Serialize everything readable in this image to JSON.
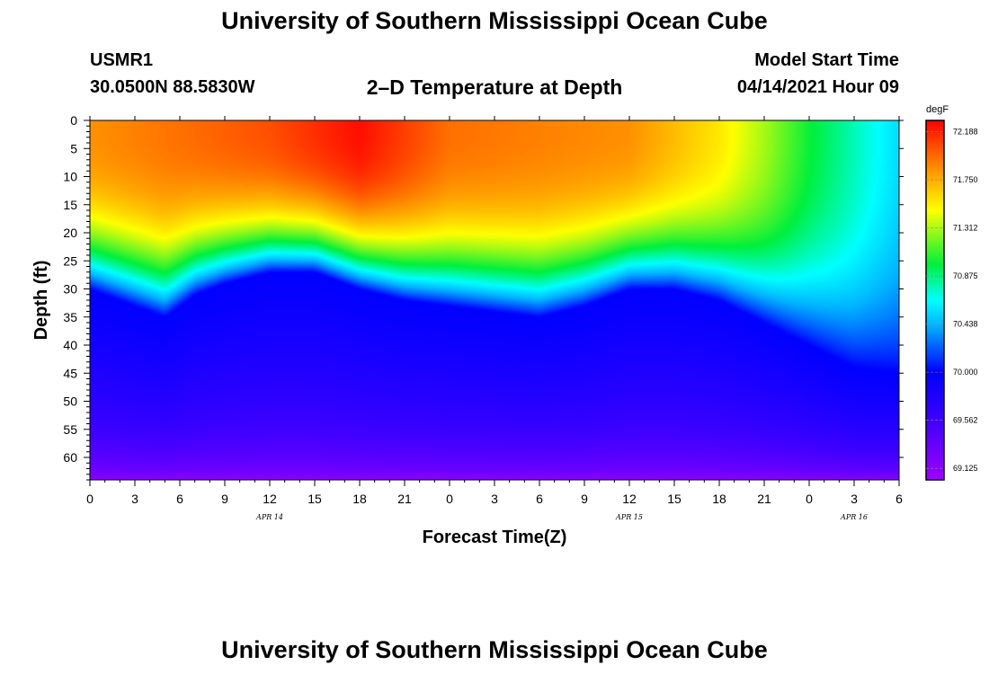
{
  "header": {
    "title": "University of Southern Mississippi Ocean Cube",
    "station": "USMR1",
    "coords": "30.0500N  88.5830W",
    "subtitle": "2–D Temperature at Depth",
    "start_label": "Model Start Time",
    "start_value": "04/14/2021 Hour 09"
  },
  "footer": {
    "title": "University of Southern Mississippi Ocean Cube"
  },
  "chart_data": {
    "type": "heatmap",
    "title": "2-D Temperature at Depth",
    "xlabel": "Forecast Time(Z)",
    "ylabel": "Depth (ft)",
    "x_tick_labels": [
      "0",
      "3",
      "6",
      "9",
      "12",
      "15",
      "18",
      "21",
      "0",
      "3",
      "6",
      "9",
      "12",
      "15",
      "18",
      "21",
      "0",
      "3",
      "6"
    ],
    "x_range_hours": [
      0,
      54
    ],
    "date_labels": [
      {
        "text": "APR 14",
        "hour": 12
      },
      {
        "text": "APR 15",
        "hour": 36
      },
      {
        "text": "APR 16",
        "hour": 51
      }
    ],
    "y_tick_labels": [
      "0",
      "5",
      "10",
      "15",
      "20",
      "25",
      "30",
      "35",
      "40",
      "45",
      "50",
      "55",
      "60"
    ],
    "y_range_ft": [
      0,
      64
    ],
    "colorbar": {
      "unit": "degF",
      "range": [
        69.02,
        72.29
      ],
      "tick_labels": [
        "72.188",
        "71.750",
        "71.312",
        "70.875",
        "70.438",
        "70.000",
        "69.562",
        "69.125"
      ],
      "tick_values": [
        72.188,
        71.75,
        71.312,
        70.875,
        70.438,
        70.0,
        69.562,
        69.125
      ]
    },
    "isotherm_70_depth_ft": {
      "hours": [
        0,
        3,
        5,
        7,
        9,
        12,
        15,
        18,
        21,
        24,
        27,
        30,
        33,
        36,
        39,
        42,
        45,
        48,
        51,
        54
      ],
      "depth": [
        30,
        33,
        35,
        31,
        29,
        27,
        27,
        30,
        32,
        33,
        34,
        35,
        33,
        30,
        30,
        32,
        36,
        40,
        44,
        45
      ]
    },
    "surface_temperature_degF": {
      "hours": [
        0,
        6,
        12,
        18,
        21,
        24,
        30,
        36,
        42,
        45,
        48,
        54
      ],
      "values": [
        71.85,
        71.95,
        72.05,
        72.25,
        72.1,
        71.95,
        71.9,
        71.85,
        71.55,
        71.3,
        71.0,
        70.55
      ]
    },
    "bottom_min_degF": 69.05
  }
}
